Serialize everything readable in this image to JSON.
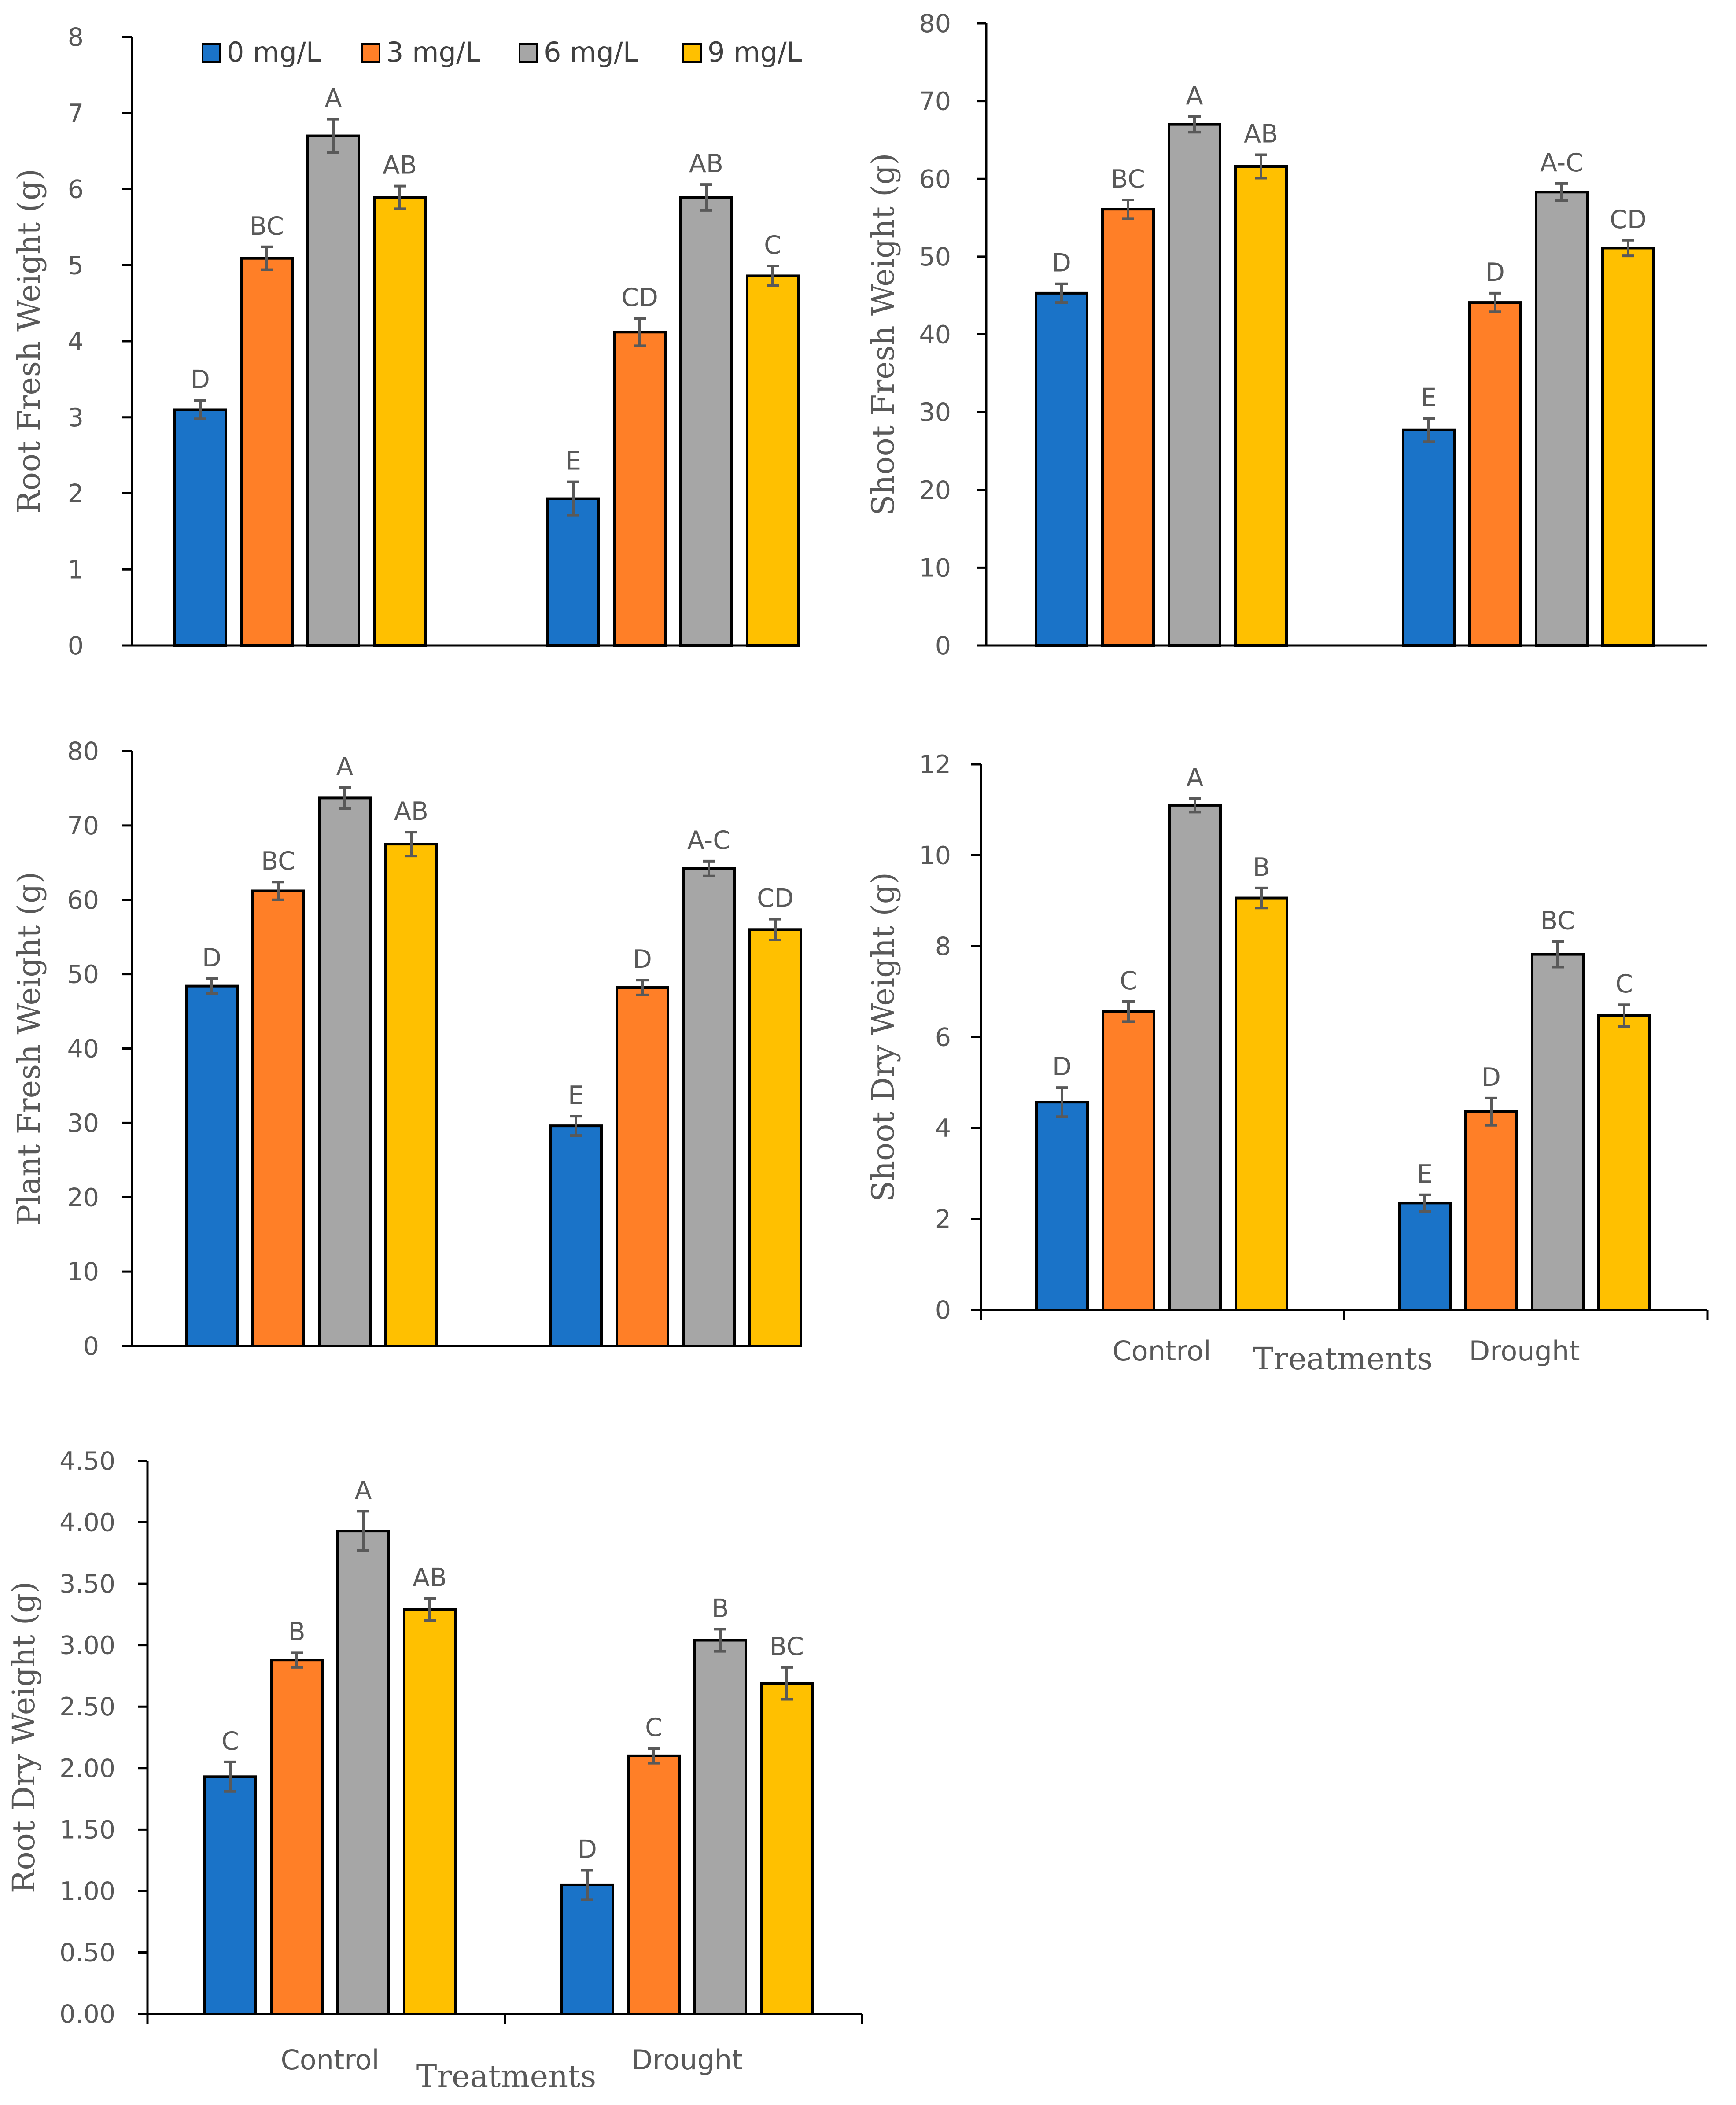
{
  "colors": {
    "series": [
      "#1A73C8",
      "#FF7F27",
      "#A6A6A6",
      "#FFC000"
    ],
    "axis": "#000000",
    "text": "#595959",
    "error_bar": "#595959"
  },
  "legend": {
    "placement": "top-left of first chart",
    "items": [
      "0 mg/L",
      "3 mg/L",
      "6 mg/L",
      "9 mg/L"
    ]
  },
  "chart_data": [
    {
      "type": "bar",
      "title": "",
      "xlabel": "",
      "ylabel": "Root Fresh Weight (g)",
      "ylim": [
        0,
        8
      ],
      "yticks": [
        0,
        1,
        2,
        3,
        4,
        5,
        6,
        7,
        8
      ],
      "ytick_labels": [
        "0",
        "1",
        "2",
        "3",
        "4",
        "5",
        "6",
        "7",
        "8"
      ],
      "categories": [
        "Control",
        "Drought"
      ],
      "show_category_labels": false,
      "series": [
        {
          "name": "0 mg/L",
          "values": [
            3.1,
            1.93
          ],
          "errors": [
            0.12,
            0.22
          ],
          "letters": [
            "D",
            "E"
          ]
        },
        {
          "name": "3 mg/L",
          "values": [
            5.09,
            4.12
          ],
          "errors": [
            0.15,
            0.18
          ],
          "letters": [
            "BC",
            "CD"
          ]
        },
        {
          "name": "6 mg/L",
          "values": [
            6.7,
            5.89
          ],
          "errors": [
            0.22,
            0.17
          ],
          "letters": [
            "A",
            "AB"
          ]
        },
        {
          "name": "9 mg/L",
          "values": [
            5.89,
            4.86
          ],
          "errors": [
            0.15,
            0.13
          ],
          "letters": [
            "AB",
            "C"
          ]
        }
      ]
    },
    {
      "type": "bar",
      "title": "",
      "xlabel": "",
      "ylabel": "Shoot Fresh Weight (g)",
      "ylim": [
        0,
        80
      ],
      "yticks": [
        0,
        10,
        20,
        30,
        40,
        50,
        60,
        70,
        80
      ],
      "ytick_labels": [
        "0",
        "10",
        "20",
        "30",
        "40",
        "50",
        "60",
        "70",
        "80"
      ],
      "categories": [
        "Control",
        "Drought"
      ],
      "show_category_labels": false,
      "series": [
        {
          "name": "0 mg/L",
          "values": [
            45.3,
            27.7
          ],
          "errors": [
            1.2,
            1.5
          ],
          "letters": [
            "D",
            "E"
          ]
        },
        {
          "name": "3 mg/L",
          "values": [
            56.1,
            44.1
          ],
          "errors": [
            1.2,
            1.2
          ],
          "letters": [
            "BC",
            "D"
          ]
        },
        {
          "name": "6 mg/L",
          "values": [
            67.0,
            58.3
          ],
          "errors": [
            1.0,
            1.1
          ],
          "letters": [
            "A",
            "A-C"
          ]
        },
        {
          "name": "9 mg/L",
          "values": [
            61.6,
            51.1
          ],
          "errors": [
            1.5,
            1.0
          ],
          "letters": [
            "AB",
            "CD"
          ]
        }
      ]
    },
    {
      "type": "bar",
      "title": "",
      "xlabel": "",
      "ylabel": "Plant Fresh Weight (g)",
      "ylim": [
        0,
        80
      ],
      "yticks": [
        0,
        10,
        20,
        30,
        40,
        50,
        60,
        70,
        80
      ],
      "ytick_labels": [
        "0",
        "10",
        "20",
        "30",
        "40",
        "50",
        "60",
        "70",
        "80"
      ],
      "categories": [
        "Control",
        "Drought"
      ],
      "show_category_labels": false,
      "series": [
        {
          "name": "0 mg/L",
          "values": [
            48.4,
            29.6
          ],
          "errors": [
            1.0,
            1.3
          ],
          "letters": [
            "D",
            "E"
          ]
        },
        {
          "name": "3 mg/L",
          "values": [
            61.2,
            48.2
          ],
          "errors": [
            1.2,
            1.0
          ],
          "letters": [
            "BC",
            "D"
          ]
        },
        {
          "name": "6 mg/L",
          "values": [
            73.7,
            64.2
          ],
          "errors": [
            1.4,
            1.0
          ],
          "letters": [
            "A",
            "A-C"
          ]
        },
        {
          "name": "9 mg/L",
          "values": [
            67.5,
            56.0
          ],
          "errors": [
            1.6,
            1.4
          ],
          "letters": [
            "AB",
            "CD"
          ]
        }
      ]
    },
    {
      "type": "bar",
      "title": "",
      "xlabel": "Treatments",
      "ylabel": "Shoot Dry Weight (g)",
      "ylim": [
        0,
        12
      ],
      "yticks": [
        0,
        2,
        4,
        6,
        8,
        10,
        12
      ],
      "ytick_labels": [
        "0",
        "2",
        "4",
        "6",
        "8",
        "10",
        "12"
      ],
      "categories": [
        "Control",
        "Drought"
      ],
      "show_category_labels": true,
      "series": [
        {
          "name": "0 mg/L",
          "values": [
            4.57,
            2.35
          ],
          "errors": [
            0.32,
            0.18
          ],
          "letters": [
            "D",
            "E"
          ]
        },
        {
          "name": "3 mg/L",
          "values": [
            6.56,
            4.36
          ],
          "errors": [
            0.22,
            0.3
          ],
          "letters": [
            "C",
            "D"
          ]
        },
        {
          "name": "6 mg/L",
          "values": [
            11.1,
            7.82
          ],
          "errors": [
            0.15,
            0.28
          ],
          "letters": [
            "A",
            "BC"
          ]
        },
        {
          "name": "9 mg/L",
          "values": [
            9.06,
            6.47
          ],
          "errors": [
            0.22,
            0.24
          ],
          "letters": [
            "B",
            "C"
          ]
        }
      ]
    },
    {
      "type": "bar",
      "title": "",
      "xlabel": "Treatments",
      "ylabel": "Root Dry Weight (g)",
      "ylim": [
        0,
        4.5
      ],
      "yticks": [
        0,
        0.5,
        1,
        1.5,
        2,
        2.5,
        3,
        3.5,
        4,
        4.5
      ],
      "ytick_labels": [
        "0.00",
        "0.50",
        "1.00",
        "1.50",
        "2.00",
        "2.50",
        "3.00",
        "3.50",
        "4.00",
        "4.50"
      ],
      "categories": [
        "Control",
        "Drought"
      ],
      "show_category_labels": true,
      "series": [
        {
          "name": "0 mg/L",
          "values": [
            1.93,
            1.05
          ],
          "errors": [
            0.12,
            0.12
          ],
          "letters": [
            "C",
            "D"
          ]
        },
        {
          "name": "3 mg/L",
          "values": [
            2.88,
            2.1
          ],
          "errors": [
            0.06,
            0.06
          ],
          "letters": [
            "B",
            "C"
          ]
        },
        {
          "name": "6 mg/L",
          "values": [
            3.93,
            3.04
          ],
          "errors": [
            0.16,
            0.09
          ],
          "letters": [
            "A",
            "B"
          ]
        },
        {
          "name": "9 mg/L",
          "values": [
            3.29,
            2.69
          ],
          "errors": [
            0.09,
            0.13
          ],
          "letters": [
            "AB",
            "BC"
          ]
        }
      ]
    }
  ]
}
